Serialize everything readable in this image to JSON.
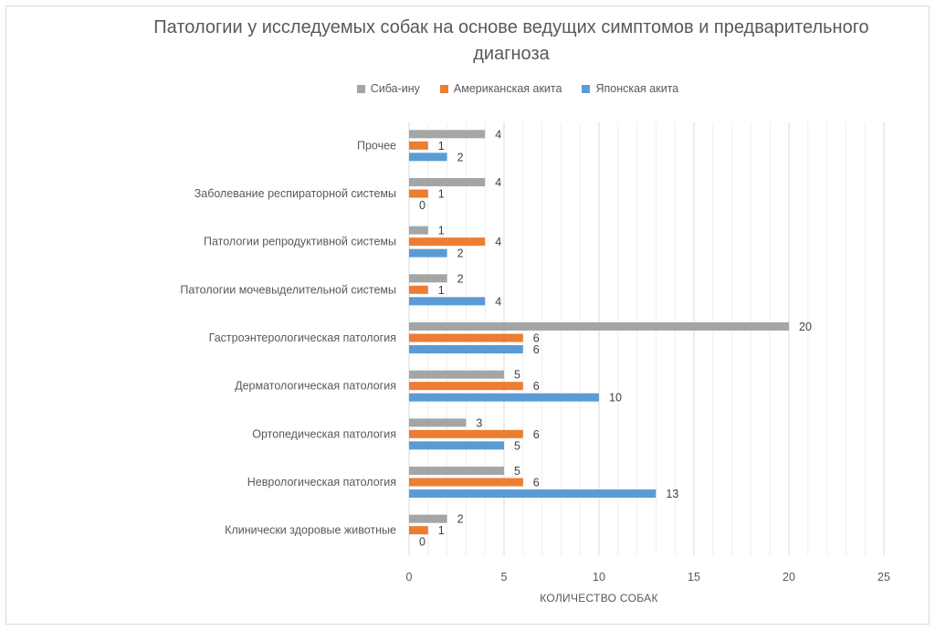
{
  "chart_data": {
    "type": "bar",
    "orientation": "horizontal",
    "title": "Патологии у исследуемых собак на основе ведущих симптомов и предварительного диагноза",
    "title_lines": [
      "Патологии у исследуемых собак на основе ведущих симптомов и предварительного",
      "диагноза"
    ],
    "xlabel": "КОЛИЧЕСТВО СОБАК",
    "ylabel": "",
    "xlim": [
      0,
      25
    ],
    "xticks": [
      0,
      5,
      10,
      15,
      20,
      25
    ],
    "grid": true,
    "legend_position": "top",
    "categories": [
      "Клинически здоровые животные",
      "Неврологическая патология",
      "Ортопедическая патология",
      "Дерматологическая патология",
      "Гастроэнтерологическая патология",
      "Патологии мочевыделительной системы",
      "Патологии репродуктивной системы",
      "Заболевание респираторной системы",
      "Прочее"
    ],
    "series": [
      {
        "name": "Японская акита",
        "color": "#5b9bd5",
        "values": [
          0,
          13,
          5,
          10,
          6,
          4,
          2,
          0,
          2
        ]
      },
      {
        "name": "Американская акита",
        "color": "#ed7d31",
        "values": [
          1,
          6,
          6,
          6,
          6,
          1,
          4,
          1,
          1
        ]
      },
      {
        "name": "Сиба-ину",
        "color": "#a5a5a5",
        "values": [
          2,
          5,
          3,
          5,
          20,
          2,
          1,
          4,
          4
        ]
      }
    ],
    "legend_order": [
      "Сиба-ину",
      "Американская акита",
      "Японская акита"
    ]
  }
}
